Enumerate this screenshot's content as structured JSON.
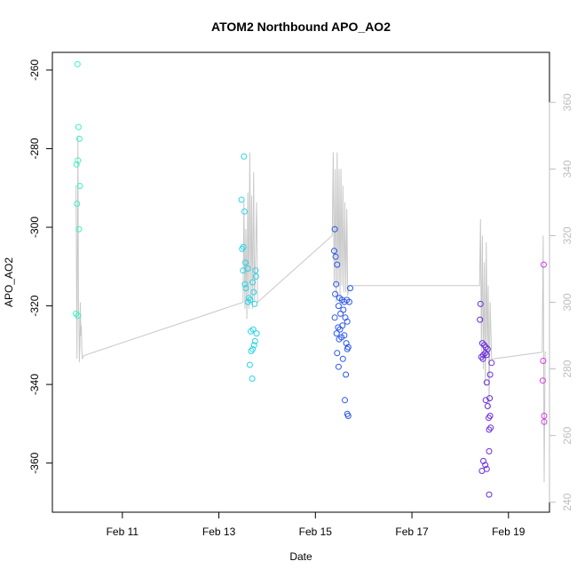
{
  "chart_data": {
    "type": "scatter",
    "title": "ATOM2 Northbound APO_AO2",
    "xlabel": "Date",
    "ylabel": "APO_AO2",
    "x_unit": "days since Feb 9 00:00",
    "xlim": [
      9.55,
      19.85
    ],
    "ylim": [
      -372.5,
      -255.5
    ],
    "y2lim": [
      237,
      375
    ],
    "x_ticks": [
      {
        "value": 11,
        "label": "Feb 11"
      },
      {
        "value": 13,
        "label": "Feb 13"
      },
      {
        "value": 15,
        "label": "Feb 15"
      },
      {
        "value": 17,
        "label": "Feb 17"
      },
      {
        "value": 19,
        "label": "Feb 19"
      }
    ],
    "y_ticks": [
      {
        "value": -260,
        "label": "-260"
      },
      {
        "value": -280,
        "label": "-280"
      },
      {
        "value": -300,
        "label": "-300"
      },
      {
        "value": -320,
        "label": "-320"
      },
      {
        "value": -340,
        "label": "-340"
      },
      {
        "value": -360,
        "label": "-360"
      }
    ],
    "y2_ticks": [
      {
        "value": 240,
        "label": "240"
      },
      {
        "value": 260,
        "label": "260"
      },
      {
        "value": 280,
        "label": "280"
      },
      {
        "value": 300,
        "label": "300"
      },
      {
        "value": 320,
        "label": "320"
      },
      {
        "value": 340,
        "label": "340"
      },
      {
        "value": 360,
        "label": "360"
      }
    ],
    "series": [
      {
        "name": "APO_AO2 points",
        "axis": "left",
        "marker": "open-circle",
        "points": [
          {
            "x": 10.07,
            "y": -258.5,
            "color": "#3ef0c3"
          },
          {
            "x": 10.09,
            "y": -274.5,
            "color": "#3ef0c3"
          },
          {
            "x": 10.11,
            "y": -277.5,
            "color": "#3ef0c3"
          },
          {
            "x": 10.08,
            "y": -283.0,
            "color": "#3ef0c3"
          },
          {
            "x": 10.05,
            "y": -284.0,
            "color": "#3ef0c3"
          },
          {
            "x": 10.12,
            "y": -289.5,
            "color": "#3ef0c3"
          },
          {
            "x": 10.06,
            "y": -294.0,
            "color": "#3ef0c3"
          },
          {
            "x": 10.1,
            "y": -300.5,
            "color": "#3ef0c3"
          },
          {
            "x": 10.04,
            "y": -322.0,
            "color": "#3ef0c3"
          },
          {
            "x": 10.08,
            "y": -322.5,
            "color": "#3ef0c3"
          },
          {
            "x": 13.52,
            "y": -282.0,
            "color": "#2ad3e6"
          },
          {
            "x": 13.47,
            "y": -293.0,
            "color": "#2ad3e6"
          },
          {
            "x": 13.53,
            "y": -296.0,
            "color": "#2ad3e6"
          },
          {
            "x": 13.48,
            "y": -305.5,
            "color": "#2ad3e6"
          },
          {
            "x": 13.51,
            "y": -305.0,
            "color": "#2ad3e6"
          },
          {
            "x": 13.55,
            "y": -309.0,
            "color": "#2ad3e6"
          },
          {
            "x": 13.6,
            "y": -310.5,
            "color": "#2ad3e6"
          },
          {
            "x": 13.5,
            "y": -311.0,
            "color": "#2ad3e6"
          },
          {
            "x": 13.76,
            "y": -311.0,
            "color": "#2ad3e6"
          },
          {
            "x": 13.77,
            "y": -312.5,
            "color": "#2ad3e6"
          },
          {
            "x": 13.54,
            "y": -314.5,
            "color": "#2ad3e6"
          },
          {
            "x": 13.56,
            "y": -315.5,
            "color": "#2ad3e6"
          },
          {
            "x": 13.7,
            "y": -314.0,
            "color": "#2ad3e6"
          },
          {
            "x": 13.72,
            "y": -316.5,
            "color": "#2ad3e6"
          },
          {
            "x": 13.62,
            "y": -318.0,
            "color": "#2ad3e6"
          },
          {
            "x": 13.65,
            "y": -318.5,
            "color": "#2ad3e6"
          },
          {
            "x": 13.6,
            "y": -319.0,
            "color": "#2ad3e6"
          },
          {
            "x": 13.74,
            "y": -319.5,
            "color": "#2ad3e6"
          },
          {
            "x": 13.66,
            "y": -326.5,
            "color": "#2ad3e6"
          },
          {
            "x": 13.71,
            "y": -326.0,
            "color": "#2ad3e6"
          },
          {
            "x": 13.78,
            "y": -327.0,
            "color": "#2ad3e6"
          },
          {
            "x": 13.75,
            "y": -329.0,
            "color": "#2ad3e6"
          },
          {
            "x": 13.73,
            "y": -330.0,
            "color": "#2ad3e6"
          },
          {
            "x": 13.7,
            "y": -331.0,
            "color": "#2ad3e6"
          },
          {
            "x": 13.67,
            "y": -331.5,
            "color": "#2ad3e6"
          },
          {
            "x": 13.64,
            "y": -335.0,
            "color": "#2ad3e6"
          },
          {
            "x": 13.69,
            "y": -338.5,
            "color": "#2ad3e6"
          },
          {
            "x": 15.4,
            "y": -300.5,
            "color": "#2b57e8"
          },
          {
            "x": 15.39,
            "y": -306.0,
            "color": "#2b57e8"
          },
          {
            "x": 15.42,
            "y": -307.5,
            "color": "#2b57e8"
          },
          {
            "x": 15.45,
            "y": -309.5,
            "color": "#2b57e8"
          },
          {
            "x": 15.72,
            "y": -315.5,
            "color": "#2b57e8"
          },
          {
            "x": 15.43,
            "y": -314.5,
            "color": "#2b57e8"
          },
          {
            "x": 15.41,
            "y": -317.0,
            "color": "#2b57e8"
          },
          {
            "x": 15.5,
            "y": -318.0,
            "color": "#2b57e8"
          },
          {
            "x": 15.55,
            "y": -318.5,
            "color": "#2b57e8"
          },
          {
            "x": 15.6,
            "y": -319.0,
            "color": "#2b57e8"
          },
          {
            "x": 15.65,
            "y": -318.5,
            "color": "#2b57e8"
          },
          {
            "x": 15.7,
            "y": -319.0,
            "color": "#2b57e8"
          },
          {
            "x": 15.48,
            "y": -320.0,
            "color": "#2b57e8"
          },
          {
            "x": 15.52,
            "y": -322.0,
            "color": "#2b57e8"
          },
          {
            "x": 15.58,
            "y": -321.0,
            "color": "#2b57e8"
          },
          {
            "x": 15.62,
            "y": -323.0,
            "color": "#2b57e8"
          },
          {
            "x": 15.4,
            "y": -323.0,
            "color": "#2b57e8"
          },
          {
            "x": 15.66,
            "y": -324.0,
            "color": "#2b57e8"
          },
          {
            "x": 15.47,
            "y": -325.5,
            "color": "#2b57e8"
          },
          {
            "x": 15.51,
            "y": -326.0,
            "color": "#2b57e8"
          },
          {
            "x": 15.56,
            "y": -325.0,
            "color": "#2b57e8"
          },
          {
            "x": 15.44,
            "y": -327.0,
            "color": "#2b57e8"
          },
          {
            "x": 15.6,
            "y": -327.5,
            "color": "#2b57e8"
          },
          {
            "x": 15.49,
            "y": -328.5,
            "color": "#2b57e8"
          },
          {
            "x": 15.54,
            "y": -328.0,
            "color": "#2b57e8"
          },
          {
            "x": 15.64,
            "y": -329.5,
            "color": "#2b57e8"
          },
          {
            "x": 15.68,
            "y": -330.5,
            "color": "#2b57e8"
          },
          {
            "x": 15.66,
            "y": -331.0,
            "color": "#2b57e8"
          },
          {
            "x": 15.45,
            "y": -332.0,
            "color": "#2b57e8"
          },
          {
            "x": 15.57,
            "y": -333.5,
            "color": "#2b57e8"
          },
          {
            "x": 15.48,
            "y": -335.5,
            "color": "#2b57e8"
          },
          {
            "x": 15.63,
            "y": -337.5,
            "color": "#2b57e8"
          },
          {
            "x": 15.61,
            "y": -344.0,
            "color": "#2b57e8"
          },
          {
            "x": 15.66,
            "y": -347.5,
            "color": "#2b57e8"
          },
          {
            "x": 15.68,
            "y": -348.0,
            "color": "#2b57e8"
          },
          {
            "x": 18.42,
            "y": -319.5,
            "color": "#6a2ce0"
          },
          {
            "x": 18.41,
            "y": -323.5,
            "color": "#6a2ce0"
          },
          {
            "x": 18.46,
            "y": -329.5,
            "color": "#6a2ce0"
          },
          {
            "x": 18.5,
            "y": -330.0,
            "color": "#6a2ce0"
          },
          {
            "x": 18.53,
            "y": -330.5,
            "color": "#6a2ce0"
          },
          {
            "x": 18.57,
            "y": -331.0,
            "color": "#6a2ce0"
          },
          {
            "x": 18.52,
            "y": -332.0,
            "color": "#6a2ce0"
          },
          {
            "x": 18.48,
            "y": -332.5,
            "color": "#6a2ce0"
          },
          {
            "x": 18.44,
            "y": -333.0,
            "color": "#6a2ce0"
          },
          {
            "x": 18.47,
            "y": -333.5,
            "color": "#6a2ce0"
          },
          {
            "x": 18.55,
            "y": -332.5,
            "color": "#6a2ce0"
          },
          {
            "x": 18.65,
            "y": -334.5,
            "color": "#6a2ce0"
          },
          {
            "x": 18.62,
            "y": -337.5,
            "color": "#6a2ce0"
          },
          {
            "x": 18.55,
            "y": -339.5,
            "color": "#6a2ce0"
          },
          {
            "x": 18.61,
            "y": -343.5,
            "color": "#6a2ce0"
          },
          {
            "x": 18.53,
            "y": -344.0,
            "color": "#6a2ce0"
          },
          {
            "x": 18.57,
            "y": -345.5,
            "color": "#6a2ce0"
          },
          {
            "x": 18.62,
            "y": -348.0,
            "color": "#6a2ce0"
          },
          {
            "x": 18.59,
            "y": -348.5,
            "color": "#6a2ce0"
          },
          {
            "x": 18.63,
            "y": -351.0,
            "color": "#6a2ce0"
          },
          {
            "x": 18.6,
            "y": -351.5,
            "color": "#6a2ce0"
          },
          {
            "x": 18.6,
            "y": -357.0,
            "color": "#6a2ce0"
          },
          {
            "x": 18.48,
            "y": -359.5,
            "color": "#6a2ce0"
          },
          {
            "x": 18.52,
            "y": -360.5,
            "color": "#6a2ce0"
          },
          {
            "x": 18.55,
            "y": -361.5,
            "color": "#6a2ce0"
          },
          {
            "x": 18.45,
            "y": -362.0,
            "color": "#6a2ce0"
          },
          {
            "x": 18.6,
            "y": -368.0,
            "color": "#6a2ce0"
          },
          {
            "x": 19.73,
            "y": -309.5,
            "color": "#d43ce8"
          },
          {
            "x": 19.72,
            "y": -334.0,
            "color": "#d43ce8"
          },
          {
            "x": 19.71,
            "y": -339.0,
            "color": "#d43ce8"
          },
          {
            "x": 19.74,
            "y": -348.0,
            "color": "#d43ce8"
          },
          {
            "x": 19.74,
            "y": -349.5,
            "color": "#d43ce8"
          }
        ]
      },
      {
        "name": "secondary trace",
        "axis": "right",
        "line_color": "#c8c8c8",
        "x": [
          10.04,
          10.06,
          10.08,
          10.09,
          10.1,
          10.11,
          10.12,
          10.13,
          10.14,
          10.15,
          10.16,
          10.17,
          10.2,
          13.5,
          13.52,
          13.54,
          13.56,
          13.58,
          13.6,
          13.62,
          13.64,
          13.66,
          13.68,
          13.7,
          13.72,
          13.74,
          13.78,
          13.8,
          15.35,
          15.37,
          15.39,
          15.41,
          15.43,
          15.45,
          15.47,
          15.49,
          15.51,
          15.53,
          15.55,
          15.57,
          15.59,
          15.61,
          15.63,
          15.65,
          15.67,
          15.7,
          18.4,
          18.42,
          18.44,
          18.46,
          18.48,
          18.5,
          18.52,
          18.54,
          18.56,
          18.58,
          18.6,
          18.62,
          18.65,
          18.68,
          19.7,
          19.72,
          19.74,
          19.76,
          19.78
        ],
        "y": [
          335,
          283,
          350,
          300,
          295,
          282,
          287,
          300,
          290,
          293,
          286,
          283,
          284,
          300,
          330,
          298,
          322,
          295,
          333,
          298,
          345,
          300,
          332,
          298,
          339,
          300,
          330,
          300,
          320,
          345,
          305,
          340,
          300,
          345,
          305,
          340,
          300,
          340,
          305,
          335,
          303,
          330,
          303,
          328,
          302,
          305,
          305,
          325,
          285,
          320,
          280,
          312,
          275,
          318,
          285,
          305,
          268,
          300,
          283,
          283,
          285,
          320,
          246,
          285,
          285
        ]
      }
    ]
  }
}
